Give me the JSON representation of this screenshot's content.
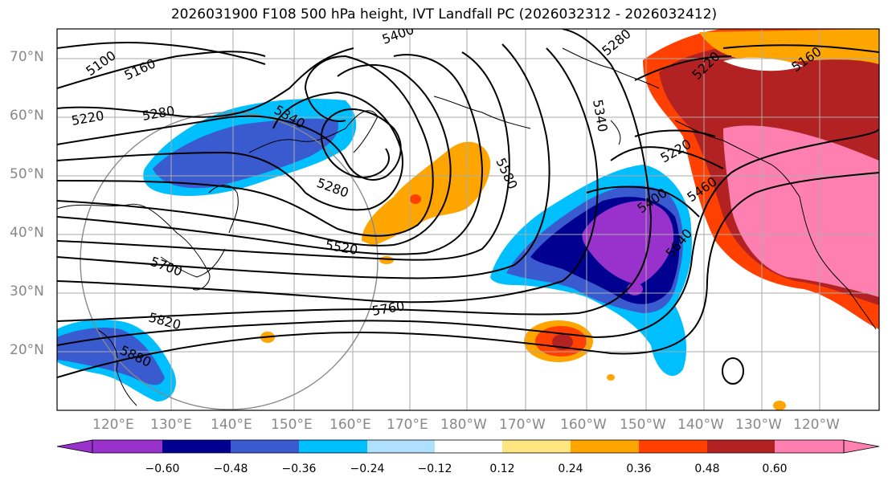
{
  "title": "2026031900 F108 500 hPa height, IVT Landfall PC (2026032312 - 2026032412)",
  "latitudes": [
    "70°N",
    "60°N",
    "50°N",
    "40°N",
    "30°N",
    "20°N"
  ],
  "longitudes": [
    "120°E",
    "130°E",
    "140°E",
    "150°E",
    "160°E",
    "170°E",
    "180°W",
    "170°W",
    "160°W",
    "150°W",
    "140°W",
    "130°W",
    "120°W"
  ],
  "contours": {
    "color": "#000000",
    "labels": [
      "5100",
      "5160",
      "5220",
      "5280",
      "5340",
      "5400",
      "5280",
      "5520",
      "5580",
      "5700",
      "5760",
      "5820",
      "5880",
      "5280",
      "5340",
      "5220",
      "5160",
      "5220",
      "5400",
      "5460",
      "5640"
    ]
  },
  "colorbar": {
    "ticks": [
      "−0.60",
      "−0.48",
      "−0.36",
      "−0.24",
      "−0.12",
      "0.12",
      "0.24",
      "0.36",
      "0.48",
      "0.60"
    ],
    "colors": [
      "#9932CC",
      "#000090",
      "#3A5BD0",
      "#00BFFF",
      "#B0E0FF",
      "#FFFFFF",
      "#FFE680",
      "#FFA500",
      "#FF4000",
      "#B22222",
      "#FF80B0"
    ]
  },
  "shading_colors": {
    "purple": "#9932CC",
    "navy": "#000090",
    "blue": "#3A5BD0",
    "sky": "#00BFFF",
    "lightblue": "#B0E0FF",
    "yellow": "#FFE680",
    "orange": "#FFA500",
    "redorange": "#FF4000",
    "darkred": "#B22222",
    "pink": "#FF80B0"
  }
}
